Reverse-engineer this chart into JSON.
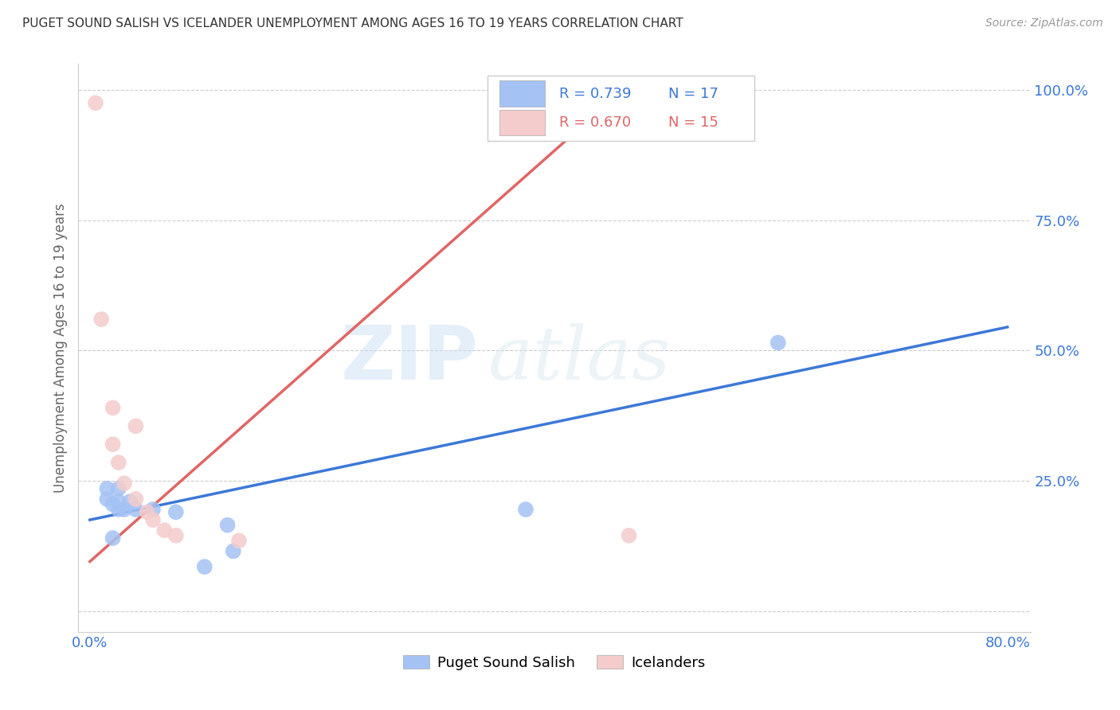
{
  "title": "PUGET SOUND SALISH VS ICELANDER UNEMPLOYMENT AMONG AGES 16 TO 19 YEARS CORRELATION CHART",
  "source": "Source: ZipAtlas.com",
  "ylabel_label": "Unemployment Among Ages 16 to 19 years",
  "xlim": [
    -0.01,
    0.82
  ],
  "ylim": [
    -0.04,
    1.05
  ],
  "xticks": [
    0.0,
    0.2,
    0.4,
    0.6,
    0.8
  ],
  "xticklabels": [
    "0.0%",
    "",
    "",
    "",
    "80.0%"
  ],
  "yticks": [
    0.0,
    0.25,
    0.5,
    0.75,
    1.0
  ],
  "yticklabels": [
    "",
    "25.0%",
    "50.0%",
    "75.0%",
    "100.0%"
  ],
  "blue_color": "#a4c2f4",
  "pink_color": "#f4cccc",
  "blue_line_color": "#3c78d8",
  "pink_line_color": "#e06666",
  "legend_blue_R": "R = 0.739",
  "legend_blue_N": "N = 17",
  "legend_pink_R": "R = 0.670",
  "legend_pink_N": "N = 15",
  "watermark_zip": "ZIP",
  "watermark_atlas": "atlas",
  "blue_points_x": [
    0.015,
    0.015,
    0.02,
    0.02,
    0.025,
    0.025,
    0.025,
    0.03,
    0.035,
    0.04,
    0.055,
    0.075,
    0.1,
    0.12,
    0.125,
    0.38,
    0.6
  ],
  "blue_points_y": [
    0.235,
    0.215,
    0.205,
    0.14,
    0.235,
    0.21,
    0.195,
    0.195,
    0.21,
    0.195,
    0.195,
    0.19,
    0.085,
    0.165,
    0.115,
    0.195,
    0.515
  ],
  "pink_points_x": [
    0.005,
    0.01,
    0.02,
    0.02,
    0.025,
    0.03,
    0.04,
    0.04,
    0.05,
    0.055,
    0.065,
    0.075,
    0.13,
    0.37,
    0.47
  ],
  "pink_points_y": [
    0.975,
    0.56,
    0.39,
    0.32,
    0.285,
    0.245,
    0.215,
    0.355,
    0.19,
    0.175,
    0.155,
    0.145,
    0.135,
    0.975,
    0.145
  ],
  "blue_line_x": [
    0.0,
    0.8
  ],
  "blue_line_y": [
    0.175,
    0.545
  ],
  "pink_line_x": [
    0.0,
    0.47
  ],
  "pink_line_y": [
    0.095,
    1.01
  ],
  "grid_color": "#cccccc",
  "spine_color": "#cccccc",
  "tick_color": "#3c78d8",
  "ylabel_color": "#666666",
  "title_color": "#333333",
  "source_color": "#999999"
}
